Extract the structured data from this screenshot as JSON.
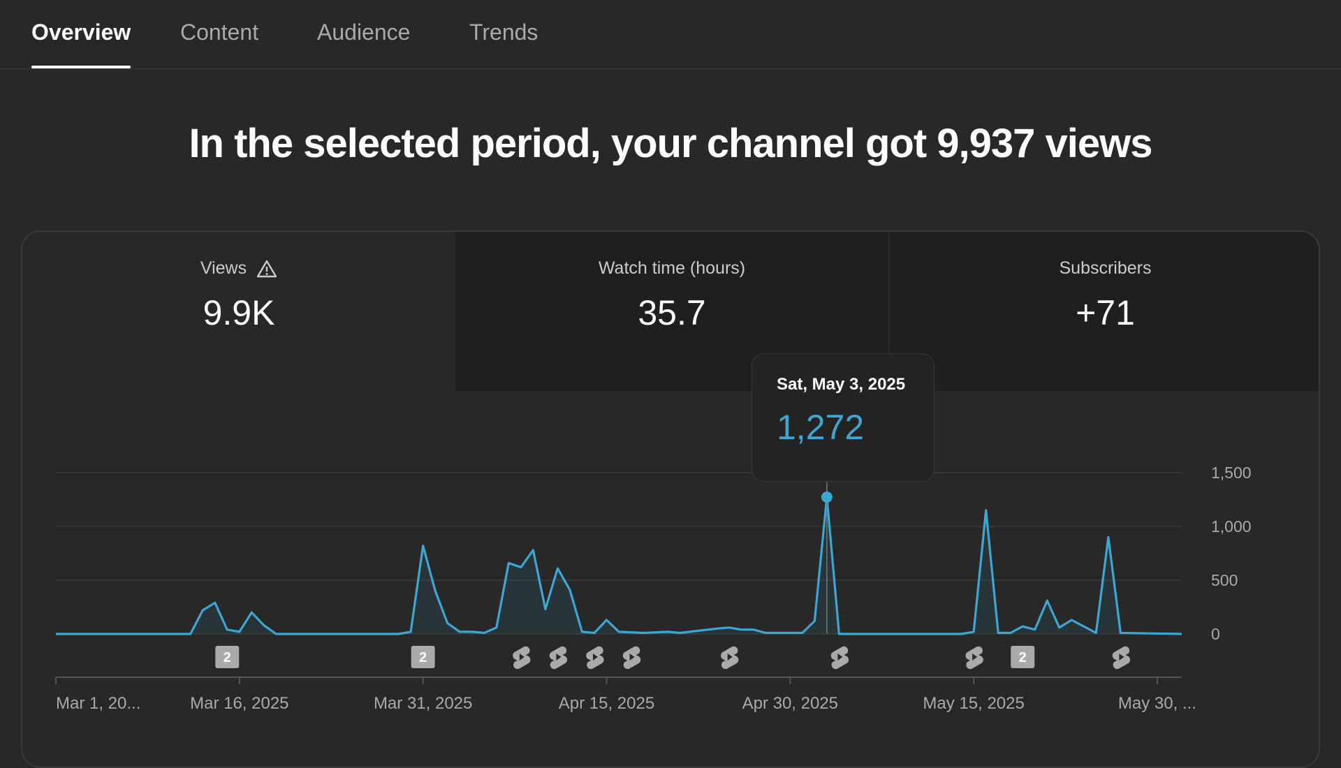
{
  "tabs": [
    {
      "label": "Overview",
      "active": true
    },
    {
      "label": "Content",
      "active": false
    },
    {
      "label": "Audience",
      "active": false
    },
    {
      "label": "Trends",
      "active": false
    }
  ],
  "headline": "In the selected period, your channel got 9,937 views",
  "metrics": [
    {
      "label": "Views",
      "value": "9.9K",
      "icon": "warning-icon"
    },
    {
      "label": "Watch time (hours)",
      "value": "35.7"
    },
    {
      "label": "Subscribers",
      "value": "+71"
    }
  ],
  "tooltip": {
    "date": "Sat, May 3, 2025",
    "value": "1,272"
  },
  "chart_data": {
    "type": "area",
    "x_start": "2025-03-01",
    "x_end": "2025-06-01",
    "ylim": [
      0,
      1500
    ],
    "y_ticks": [
      "1,500",
      "1,000",
      "500",
      "0"
    ],
    "x_tick_labels": [
      "Mar 1, 20...",
      "Mar 16, 2025",
      "Mar 31, 2025",
      "Apr 15, 2025",
      "Apr 30, 2025",
      "May 15, 2025",
      "May 30, ..."
    ],
    "color": "#3ea6d2",
    "highlight": {
      "date": "2025-05-03",
      "value": 1272
    },
    "series": [
      {
        "points": [
          [
            "2025-03-01",
            0
          ],
          [
            "2025-03-12",
            0
          ],
          [
            "2025-03-13",
            220
          ],
          [
            "2025-03-14",
            290
          ],
          [
            "2025-03-15",
            40
          ],
          [
            "2025-03-16",
            20
          ],
          [
            "2025-03-17",
            200
          ],
          [
            "2025-03-18",
            80
          ],
          [
            "2025-03-19",
            0
          ],
          [
            "2025-03-29",
            0
          ],
          [
            "2025-03-30",
            20
          ],
          [
            "2025-03-31",
            820
          ],
          [
            "2025-04-01",
            400
          ],
          [
            "2025-04-02",
            100
          ],
          [
            "2025-04-03",
            20
          ],
          [
            "2025-04-04",
            20
          ],
          [
            "2025-04-05",
            10
          ],
          [
            "2025-04-06",
            60
          ],
          [
            "2025-04-07",
            660
          ],
          [
            "2025-04-08",
            620
          ],
          [
            "2025-04-09",
            780
          ],
          [
            "2025-04-10",
            230
          ],
          [
            "2025-04-11",
            610
          ],
          [
            "2025-04-12",
            410
          ],
          [
            "2025-04-13",
            20
          ],
          [
            "2025-04-14",
            10
          ],
          [
            "2025-04-15",
            130
          ],
          [
            "2025-04-16",
            20
          ],
          [
            "2025-04-18",
            10
          ],
          [
            "2025-04-20",
            20
          ],
          [
            "2025-04-21",
            10
          ],
          [
            "2025-04-24",
            50
          ],
          [
            "2025-04-25",
            60
          ],
          [
            "2025-04-26",
            40
          ],
          [
            "2025-04-27",
            40
          ],
          [
            "2025-04-28",
            10
          ],
          [
            "2025-05-01",
            10
          ],
          [
            "2025-05-02",
            120
          ],
          [
            "2025-05-03",
            1272
          ],
          [
            "2025-05-04",
            0
          ],
          [
            "2025-05-14",
            0
          ],
          [
            "2025-05-15",
            20
          ],
          [
            "2025-05-16",
            1150
          ],
          [
            "2025-05-17",
            10
          ],
          [
            "2025-05-18",
            10
          ],
          [
            "2025-05-19",
            70
          ],
          [
            "2025-05-20",
            40
          ],
          [
            "2025-05-21",
            310
          ],
          [
            "2025-05-22",
            60
          ],
          [
            "2025-05-23",
            130
          ],
          [
            "2025-05-24",
            70
          ],
          [
            "2025-05-25",
            10
          ],
          [
            "2025-05-26",
            900
          ],
          [
            "2025-05-27",
            10
          ],
          [
            "2025-06-01",
            0
          ]
        ]
      }
    ],
    "markers": [
      {
        "date": "2025-03-15",
        "type": "count",
        "label": "2"
      },
      {
        "date": "2025-03-31",
        "type": "count",
        "label": "2"
      },
      {
        "date": "2025-04-08",
        "type": "shorts"
      },
      {
        "date": "2025-04-11",
        "type": "shorts"
      },
      {
        "date": "2025-04-14",
        "type": "shorts"
      },
      {
        "date": "2025-04-17",
        "type": "shorts"
      },
      {
        "date": "2025-04-25",
        "type": "shorts"
      },
      {
        "date": "2025-05-04",
        "type": "shorts"
      },
      {
        "date": "2025-05-15",
        "type": "shorts"
      },
      {
        "date": "2025-05-19",
        "type": "count",
        "label": "2"
      },
      {
        "date": "2025-05-27",
        "type": "shorts"
      }
    ]
  }
}
